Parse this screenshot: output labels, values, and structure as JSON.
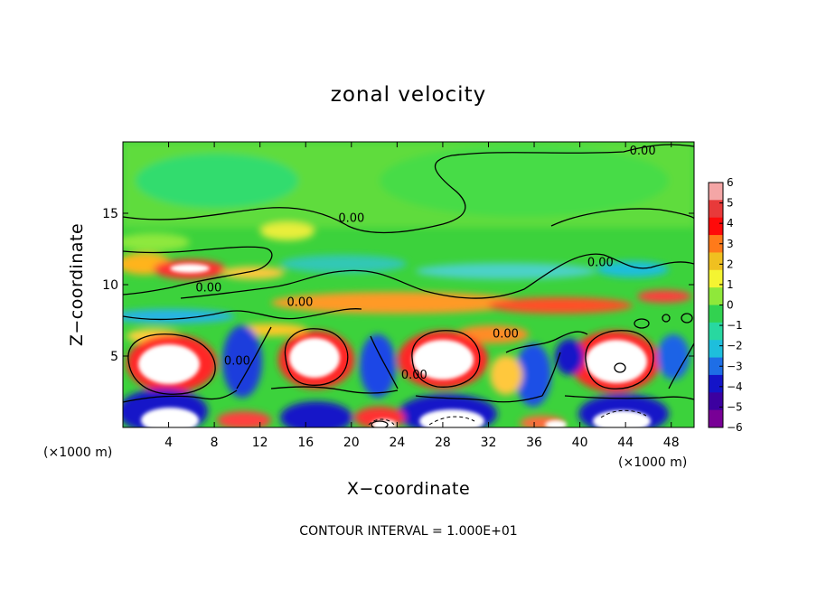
{
  "chart_data": {
    "type": "heatmap",
    "title": "zonal velocity",
    "xlabel": "X−coordinate",
    "ylabel": "Z−coordinate",
    "x_unit_left": "(×1000 m)",
    "x_unit_right": "(×1000 m)",
    "footnote": "CONTOUR INTERVAL = 1.000E+01",
    "xlim": [
      0,
      50
    ],
    "ylim": [
      0,
      20
    ],
    "x_ticks": [
      4,
      8,
      12,
      16,
      20,
      24,
      28,
      32,
      36,
      40,
      44,
      48
    ],
    "y_ticks": [
      5,
      10,
      15
    ],
    "colorbar": {
      "min": -6,
      "max": 6,
      "ticks": [
        6,
        5,
        4,
        3,
        2,
        1,
        0,
        -1,
        -2,
        -3,
        -4,
        -5,
        -6
      ],
      "colors": [
        "#f4a6a6",
        "#e83a3a",
        "#ff0a0a",
        "#ff7a1a",
        "#f0c020",
        "#f4f432",
        "#8fe83a",
        "#32d250",
        "#28d8a0",
        "#1ebedc",
        "#1e6ee6",
        "#1414c8",
        "#3c00a0",
        "#780096"
      ]
    },
    "contour_labels": [
      {
        "text": "0.00",
        "x": 45.5,
        "y": 19.3
      },
      {
        "text": "0.00",
        "x": 20,
        "y": 14.6
      },
      {
        "text": "0.00",
        "x": 41.8,
        "y": 11.5
      },
      {
        "text": "0.00",
        "x": 7.5,
        "y": 9.7
      },
      {
        "text": "0.00",
        "x": 15.5,
        "y": 8.7
      },
      {
        "text": "0.00",
        "x": 33.5,
        "y": 6.5
      },
      {
        "text": "0.00",
        "x": 10,
        "y": 4.6
      },
      {
        "text": "0.00",
        "x": 25.5,
        "y": 3.6
      }
    ]
  }
}
